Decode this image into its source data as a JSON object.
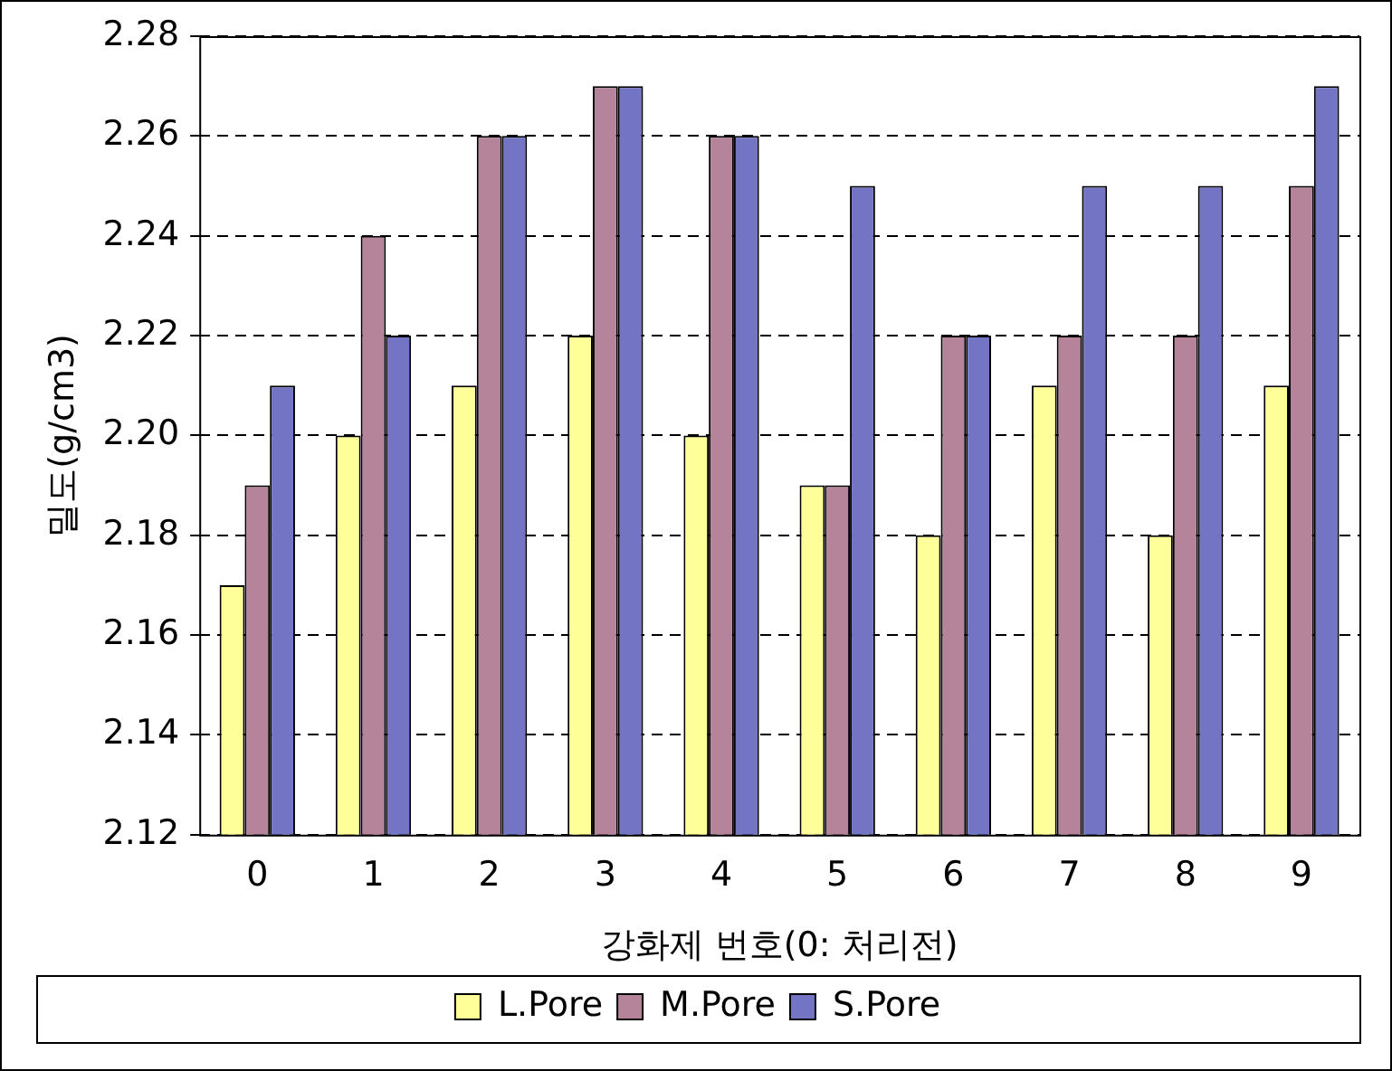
{
  "chart_data": {
    "type": "bar",
    "xlabel": "강화제 번호(0: 처리전)",
    "ylabel": "밀도(g/cm3)",
    "categories": [
      "0",
      "1",
      "2",
      "3",
      "4",
      "5",
      "6",
      "7",
      "8",
      "9"
    ],
    "series": [
      {
        "name": "L.Pore",
        "color": "#ffff99",
        "values": [
          2.17,
          2.2,
          2.21,
          2.22,
          2.2,
          2.19,
          2.18,
          2.21,
          2.18,
          2.21
        ]
      },
      {
        "name": "M.Pore",
        "color": "#b5839a",
        "values": [
          2.19,
          2.24,
          2.26,
          2.27,
          2.26,
          2.19,
          2.22,
          2.22,
          2.22,
          2.25
        ]
      },
      {
        "name": "S.Pore",
        "color": "#7474c4",
        "values": [
          2.21,
          2.22,
          2.26,
          2.27,
          2.26,
          2.25,
          2.22,
          2.25,
          2.25,
          2.27
        ]
      }
    ],
    "ylim": [
      2.12,
      2.28
    ],
    "yticks": [
      {
        "value": 2.12,
        "label": "2.12"
      },
      {
        "value": 2.14,
        "label": "2.14"
      },
      {
        "value": 2.16,
        "label": "2.16"
      },
      {
        "value": 2.18,
        "label": "2.18"
      },
      {
        "value": 2.2,
        "label": "2.20"
      },
      {
        "value": 2.22,
        "label": "2.22"
      },
      {
        "value": 2.24,
        "label": "2.24"
      },
      {
        "value": 2.26,
        "label": "2.26"
      },
      {
        "value": 2.28,
        "label": "2.28"
      }
    ],
    "grid": "y",
    "line_style": "dashed",
    "legend": "bottom"
  }
}
